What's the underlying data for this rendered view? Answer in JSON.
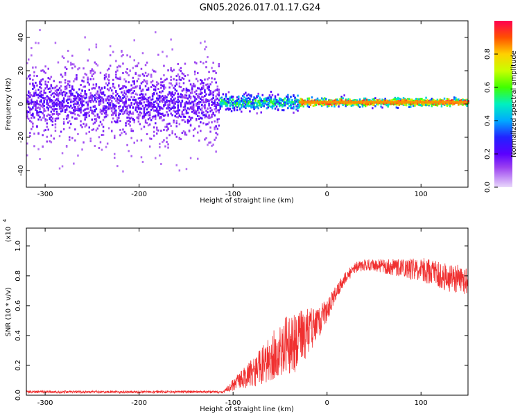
{
  "title": "GN05.2026.017.01.17.G24",
  "colors": {
    "snr_line": "#f03030",
    "background": "#ffffff",
    "axis": "#000000"
  },
  "chart_data": [
    {
      "type": "heatmap",
      "xlabel": "Height of straight line (km)",
      "ylabel": "Frequency (Hz)",
      "xlim": [
        -320,
        150
      ],
      "ylim": [
        -50,
        50
      ],
      "xticks": [
        -300,
        -200,
        -100,
        0,
        100
      ],
      "yticks": [
        -40,
        -20,
        0,
        20,
        40
      ],
      "colorbar": {
        "label": "Normalized spectral amplitude",
        "range": [
          0,
          1
        ],
        "ticks": [
          0.0,
          0.2,
          0.4,
          0.6,
          0.8
        ],
        "colormap": "purple-blue-cyan-green-yellow-red"
      },
      "regions": [
        {
          "x_range": [
            -320,
            -115
          ],
          "freq_spread_hz": 50,
          "core_spread_hz": 10,
          "amplitude": 0.15
        },
        {
          "x_range": [
            -115,
            -30
          ],
          "freq_spread_hz": 8,
          "core_spread_hz": 3,
          "amplitude": 0.45
        },
        {
          "x_range": [
            -30,
            150
          ],
          "freq_spread_hz": 4,
          "core_spread_hz": 1.5,
          "amplitude": 0.85
        }
      ],
      "line_frequency_hz": 1
    },
    {
      "type": "line",
      "xlabel": "Height of straight line (km)",
      "ylabel": "SNR (10 * v/v)",
      "y_scale_label": "(x10",
      "y_scale_exponent": "4",
      "xlim": [
        -320,
        150
      ],
      "ylim": [
        0,
        1.12
      ],
      "xticks": [
        -300,
        -200,
        -100,
        0,
        100
      ],
      "yticks": [
        0.0,
        0.2,
        0.4,
        0.6,
        0.8,
        1.0
      ],
      "series": [
        {
          "x": [
            -320,
            -200,
            -110,
            -100,
            -90,
            -80,
            -70,
            -60,
            -50,
            -40,
            -30,
            -20,
            -10,
            0,
            10,
            20,
            30,
            40,
            50,
            60,
            70,
            80,
            90,
            100,
            110,
            120,
            130,
            140,
            150
          ],
          "y": [
            0.02,
            0.02,
            0.02,
            0.06,
            0.09,
            0.12,
            0.15,
            0.2,
            0.25,
            0.28,
            0.3,
            0.38,
            0.45,
            0.55,
            0.68,
            0.78,
            0.84,
            0.86,
            0.86,
            0.85,
            0.84,
            0.84,
            0.82,
            0.82,
            0.8,
            0.78,
            0.76,
            0.75,
            0.73
          ],
          "noise": [
            0.01,
            0.01,
            0.01,
            0.05,
            0.08,
            0.12,
            0.16,
            0.2,
            0.24,
            0.25,
            0.26,
            0.2,
            0.14,
            0.1,
            0.06,
            0.05,
            0.05,
            0.05,
            0.05,
            0.06,
            0.07,
            0.08,
            0.09,
            0.1,
            0.11,
            0.12,
            0.12,
            0.12,
            0.12
          ]
        }
      ]
    }
  ]
}
